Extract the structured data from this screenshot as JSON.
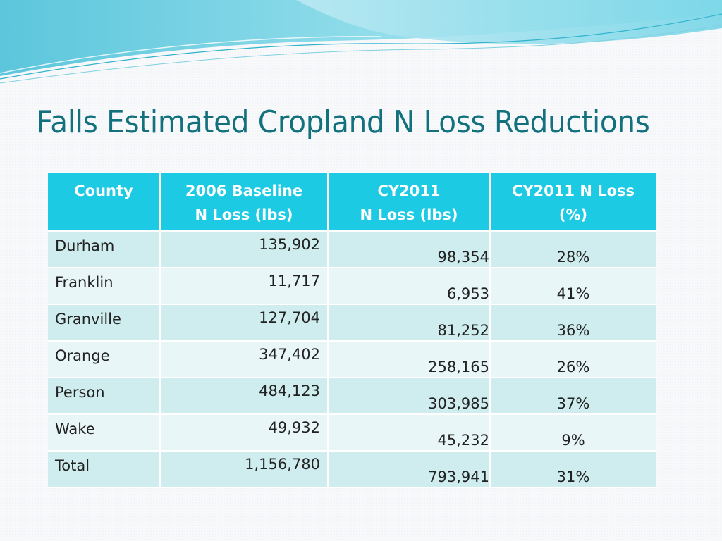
{
  "slide": {
    "title": "Falls Estimated Cropland N Loss Reductions"
  },
  "table": {
    "headers": [
      {
        "line1": "County",
        "line2": ""
      },
      {
        "line1": "2006 Baseline",
        "line2": "N Loss (lbs)"
      },
      {
        "line1": "CY2011",
        "line2": "N Loss (lbs)"
      },
      {
        "line1": "CY2011 N Loss",
        "line2": "(%)"
      }
    ],
    "rows": [
      {
        "county": "Durham",
        "baseline": "135,902",
        "cy2011": "98,354",
        "pct": "28%"
      },
      {
        "county": "Franklin",
        "baseline": "11,717",
        "cy2011": "6,953",
        "pct": "41%"
      },
      {
        "county": "Granville",
        "baseline": "127,704",
        "cy2011": "81,252",
        "pct": "36%"
      },
      {
        "county": "Orange",
        "baseline": "347,402",
        "cy2011": "258,165",
        "pct": "26%"
      },
      {
        "county": "Person",
        "baseline": "484,123",
        "cy2011": "303,985",
        "pct": "37%"
      },
      {
        "county": "Wake",
        "baseline": "49,932",
        "cy2011": "45,232",
        "pct": "9%"
      },
      {
        "county": "Total",
        "baseline": "1,156,780",
        "cy2011": "793,941",
        "pct": "31%"
      }
    ]
  },
  "colors": {
    "title": "#13717e",
    "header_bg": "#1dcae3",
    "row_dark": "#cfecef",
    "row_light": "#e8f6f7"
  }
}
